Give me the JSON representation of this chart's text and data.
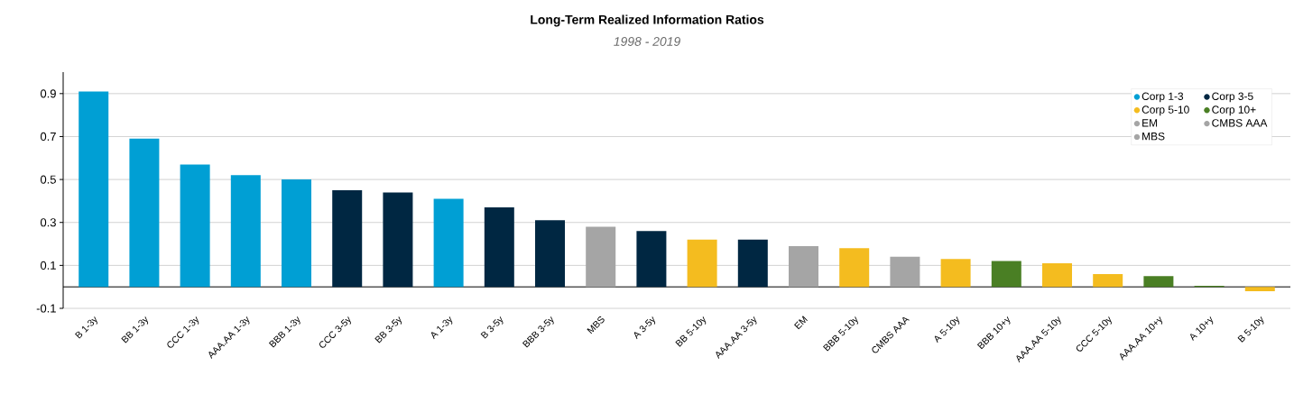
{
  "chart_data": {
    "type": "bar",
    "title": "Long-Term Realized Information Ratios",
    "subtitle": "1998 - 2019",
    "categories": [
      "B 1-3y",
      "BB 1-3y",
      "CCC 1-3y",
      "AAA.AA 1-3y",
      "BBB 1-3y",
      "CCC 3-5y",
      "BB 3-5y",
      "A 1-3y",
      "B 3-5y",
      "BBB 3-5y",
      "MBS",
      "A 3-5y",
      "BB 5-10y",
      "AAA.AA 3-5y",
      "EM",
      "BBB 5-10y",
      "CMBS AAA",
      "A 5-10y",
      "BBB 10+y",
      "AAA.AA 5-10y",
      "CCC 5-10y",
      "AAA.AA 10+y",
      "A 10+y",
      "B 5-10y"
    ],
    "series": [
      {
        "name": "Corp 1-3",
        "color": "#009fd4",
        "values": [
          0.91,
          0.69,
          0.57,
          0.52,
          0.5,
          null,
          null,
          0.41,
          null,
          null,
          null,
          null,
          null,
          null,
          null,
          null,
          null,
          null,
          null,
          null,
          null,
          null,
          null,
          null
        ]
      },
      {
        "name": "Corp 3-5",
        "color": "#002742",
        "values": [
          null,
          null,
          null,
          null,
          null,
          0.45,
          0.44,
          null,
          0.37,
          0.31,
          null,
          0.26,
          null,
          0.22,
          null,
          null,
          null,
          null,
          null,
          null,
          null,
          null,
          null,
          null
        ]
      },
      {
        "name": "Corp 5-10",
        "color": "#f4bc1f",
        "values": [
          null,
          null,
          null,
          null,
          null,
          null,
          null,
          null,
          null,
          null,
          null,
          null,
          0.22,
          null,
          null,
          0.18,
          null,
          0.13,
          null,
          0.11,
          0.06,
          null,
          null,
          -0.02
        ]
      },
      {
        "name": "Corp 10+",
        "color": "#4a7f24",
        "values": [
          null,
          null,
          null,
          null,
          null,
          null,
          null,
          null,
          null,
          null,
          null,
          null,
          null,
          null,
          null,
          null,
          null,
          null,
          0.12,
          null,
          null,
          0.05,
          0.005,
          null
        ]
      },
      {
        "name": "EM",
        "color": "#a5a5a5",
        "values": [
          null,
          null,
          null,
          null,
          null,
          null,
          null,
          null,
          null,
          null,
          null,
          null,
          null,
          null,
          0.19,
          null,
          null,
          null,
          null,
          null,
          null,
          null,
          null,
          null
        ]
      },
      {
        "name": "CMBS AAA",
        "color": "#a5a5a5",
        "values": [
          null,
          null,
          null,
          null,
          null,
          null,
          null,
          null,
          null,
          null,
          null,
          null,
          null,
          null,
          null,
          null,
          0.14,
          null,
          null,
          null,
          null,
          null,
          null,
          null
        ]
      },
      {
        "name": "MBS",
        "color": "#a5a5a5",
        "values": [
          null,
          null,
          null,
          null,
          null,
          null,
          null,
          null,
          null,
          null,
          0.28,
          null,
          null,
          null,
          null,
          null,
          null,
          null,
          null,
          null,
          null,
          null,
          null,
          null
        ]
      }
    ],
    "ylim": [
      -0.1,
      1.0
    ],
    "yticks": [
      -0.1,
      0.1,
      0.3,
      0.5,
      0.7,
      0.9
    ],
    "grid": "y",
    "legend": "top right"
  }
}
